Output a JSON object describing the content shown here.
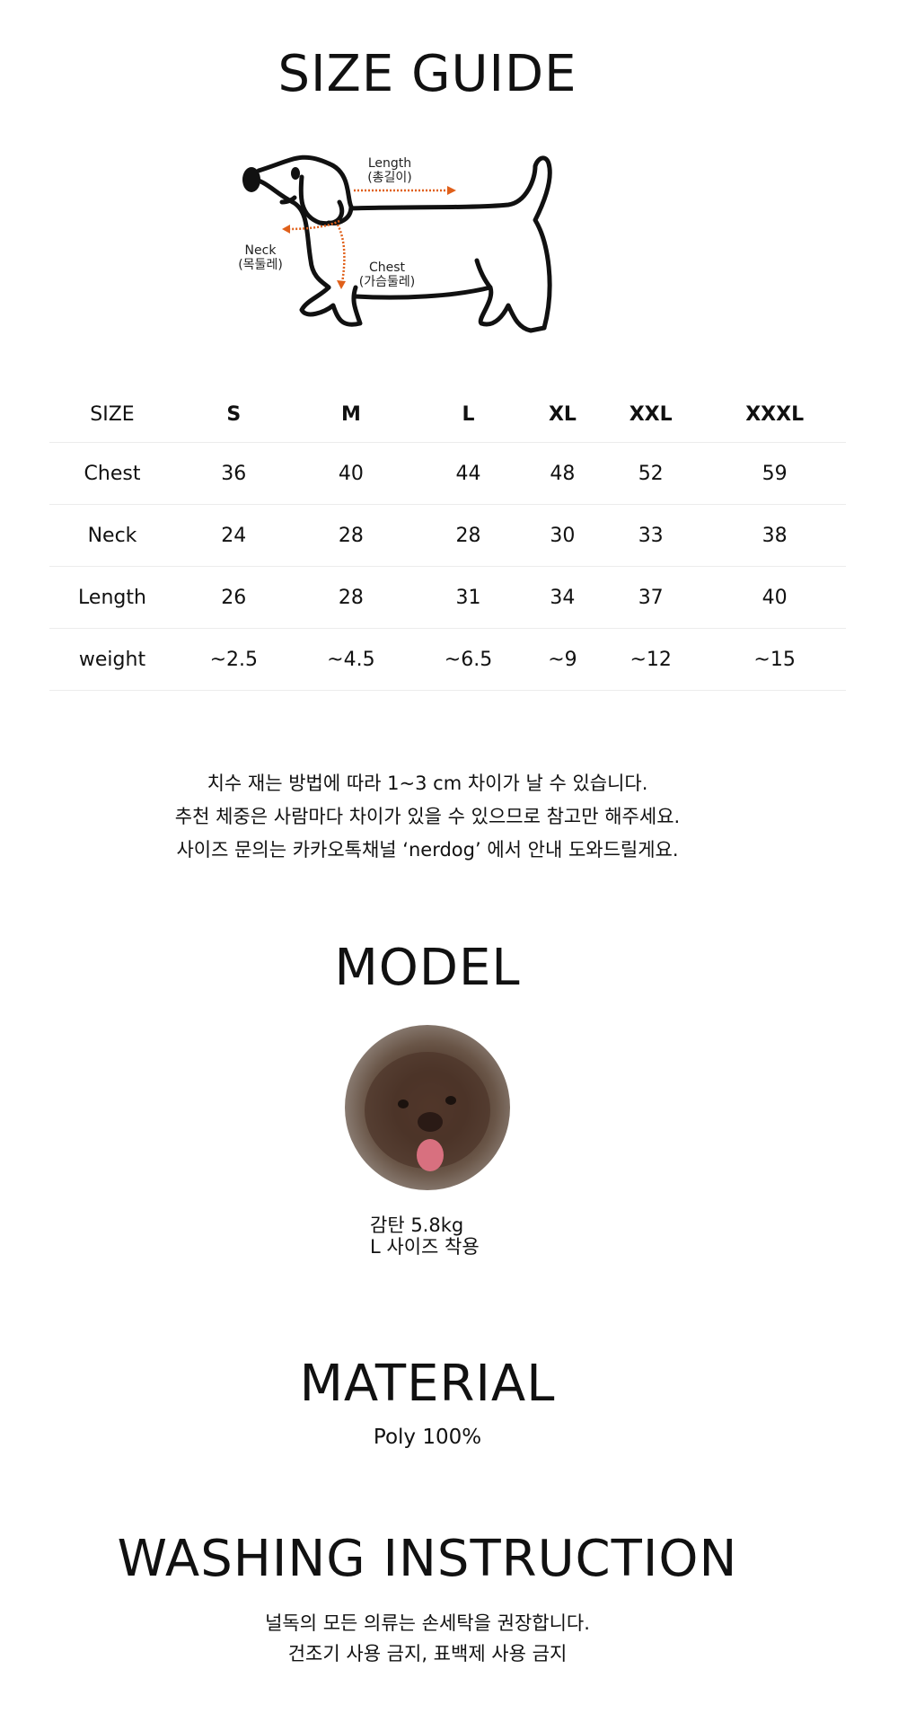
{
  "size_guide": {
    "title": "SIZE GUIDE",
    "diagram": {
      "length_label": "Length",
      "length_label_ko": "(총길이)",
      "neck_label": "Neck",
      "neck_label_ko": "(목둘레)",
      "chest_label": "Chest",
      "chest_label_ko": "(가슴둘레)",
      "arrow_color": "#e0601a"
    },
    "table": {
      "headers": [
        "SIZE",
        "S",
        "M",
        "L",
        "XL",
        "XXL",
        "XXXL"
      ],
      "rows": [
        [
          "Chest",
          "36",
          "40",
          "44",
          "48",
          "52",
          "59"
        ],
        [
          "Neck",
          "24",
          "28",
          "28",
          "30",
          "33",
          "38"
        ],
        [
          "Length",
          "26",
          "28",
          "31",
          "34",
          "37",
          "40"
        ],
        [
          "weight",
          "~2.5",
          "~4.5",
          "~6.5",
          "~9",
          "~12",
          "~15"
        ]
      ]
    },
    "notes": [
      "치수 재는 방법에 따라 1~3 cm 차이가 날 수 있습니다.",
      "추천 체중은 사람마다 차이가 있을 수 있으므로 참고만 해주세요.",
      "사이즈 문의는 카카오톡채널 ‘nerdog’ 에서 안내 도와드릴게요."
    ]
  },
  "model": {
    "title": "MODEL",
    "caption_line1": "감탄 5.8kg",
    "caption_line2": "L 사이즈 착용"
  },
  "material": {
    "title": "MATERIAL",
    "value": "Poly 100%"
  },
  "washing": {
    "title": "WASHING INSTRUCTION",
    "lines": [
      "널독의 모든 의류는 손세탁을 권장합니다.",
      "건조기 사용 금지, 표백제 사용 금지"
    ]
  }
}
